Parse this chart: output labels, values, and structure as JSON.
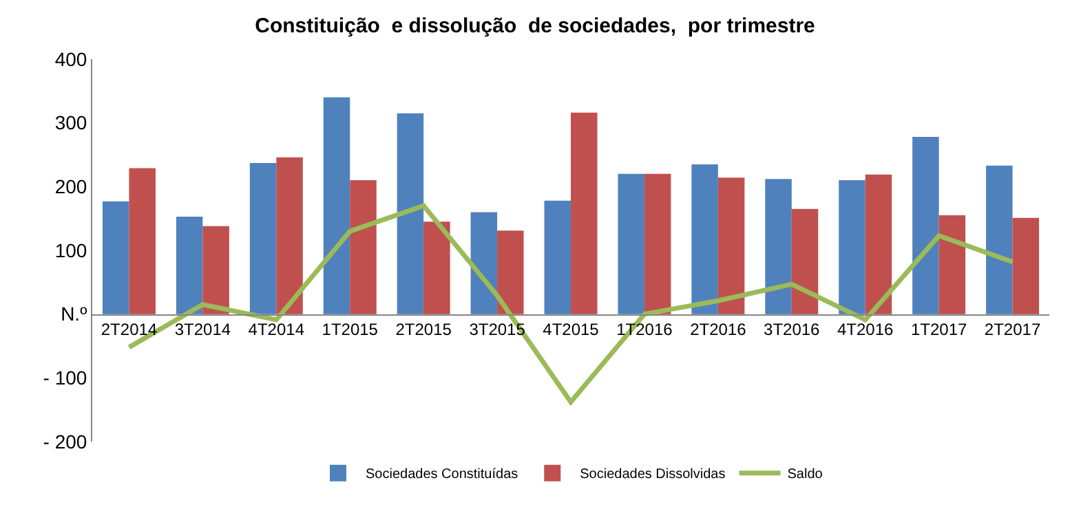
{
  "chart_data": {
    "type": "bar",
    "title": "Constituição  e dissolução  de sociedades,  por trimestre",
    "categories": [
      "2T2014",
      "3T2014",
      "4T2014",
      "1T2015",
      "2T2015",
      "3T2015",
      "4T2015",
      "1T2016",
      "2T2016",
      "3T2016",
      "4T2016",
      "1T2017",
      "2T2017"
    ],
    "series": [
      {
        "name": "Sociedades Constituídas",
        "color": "#4f81bd",
        "values": [
          177,
          153,
          237,
          340,
          315,
          160,
          178,
          220,
          235,
          212,
          210,
          278,
          233
        ]
      },
      {
        "name": "Sociedades Dissolvidas",
        "color": "#c0504d",
        "values": [
          229,
          138,
          246,
          210,
          145,
          131,
          316,
          220,
          214,
          165,
          219,
          155,
          151
        ]
      },
      {
        "name": "Saldo",
        "type": "line",
        "color": "#9bbb59",
        "values": [
          -52,
          15,
          -9,
          130,
          170,
          29,
          -138,
          0,
          21,
          47,
          -9,
          123,
          82
        ]
      }
    ],
    "ylim": [
      -200,
      400
    ],
    "yticks": [
      {
        "value": -200,
        "label": "- 200"
      },
      {
        "value": -100,
        "label": "- 100"
      },
      {
        "value": 0,
        "label": "N.º"
      },
      100,
      200,
      300,
      400
    ],
    "legend": "bottom",
    "marker": "none"
  }
}
